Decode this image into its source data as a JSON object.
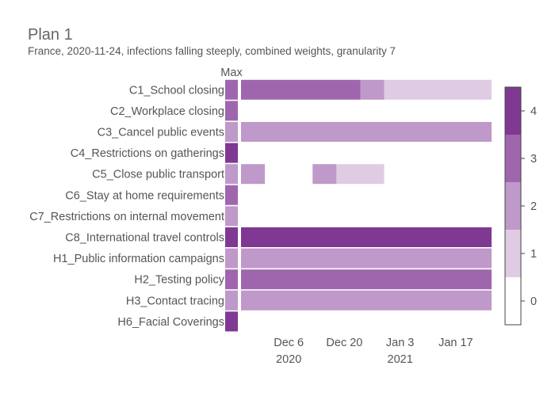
{
  "chart_data": {
    "type": "heatmap",
    "title": "Plan 1",
    "subtitle": "France, 2020-11-24, infections falling steeply, combined weights, granularity 7",
    "max_label": "Max",
    "x_axis": {
      "start_date": "2020-11-24",
      "end_date": "2021-01-26",
      "ticks": [
        {
          "date": "2020-12-06",
          "label": "Dec 6",
          "sublabel": "2020"
        },
        {
          "date": "2020-12-20",
          "label": "Dec 20",
          "sublabel": ""
        },
        {
          "date": "2021-01-03",
          "label": "Jan 3",
          "sublabel": "2021"
        },
        {
          "date": "2021-01-17",
          "label": "Jan 17",
          "sublabel": ""
        }
      ]
    },
    "colorscale": {
      "min": 0,
      "max": 4,
      "ticks": [
        "0",
        "1",
        "2",
        "3",
        "4"
      ],
      "colors": [
        "#ffffff",
        "#dfcce4",
        "#bf99c9",
        "#9f66ae",
        "#7f3993"
      ]
    },
    "categories": [
      "C1_School closing",
      "C2_Workplace closing",
      "C3_Cancel public events",
      "C4_Restrictions on gatherings",
      "C5_Close public transport",
      "C6_Stay at home requirements",
      "C7_Restrictions on internal movement",
      "C8_International travel controls",
      "H1_Public information campaigns",
      "H2_Testing policy",
      "H3_Contact tracing",
      "H6_Facial Coverings"
    ],
    "max_values": [
      3,
      3,
      2,
      4,
      2,
      3,
      2,
      4,
      2,
      3,
      2,
      4
    ],
    "segments": [
      [
        {
          "start": "2020-11-24",
          "end": "2020-12-24",
          "value": 3
        },
        {
          "start": "2020-12-24",
          "end": "2020-12-30",
          "value": 2
        },
        {
          "start": "2020-12-30",
          "end": "2021-01-26",
          "value": 1
        }
      ],
      [],
      [
        {
          "start": "2020-11-24",
          "end": "2021-01-26",
          "value": 2
        }
      ],
      [],
      [
        {
          "start": "2020-11-24",
          "end": "2020-11-30",
          "value": 2
        },
        {
          "start": "2020-12-12",
          "end": "2020-12-18",
          "value": 2
        },
        {
          "start": "2020-12-18",
          "end": "2020-12-30",
          "value": 1
        }
      ],
      [],
      [],
      [
        {
          "start": "2020-11-24",
          "end": "2021-01-26",
          "value": 4
        }
      ],
      [
        {
          "start": "2020-11-24",
          "end": "2021-01-26",
          "value": 2
        }
      ],
      [
        {
          "start": "2020-11-24",
          "end": "2021-01-26",
          "value": 3
        }
      ],
      [
        {
          "start": "2020-11-24",
          "end": "2021-01-26",
          "value": 2
        }
      ],
      []
    ]
  }
}
